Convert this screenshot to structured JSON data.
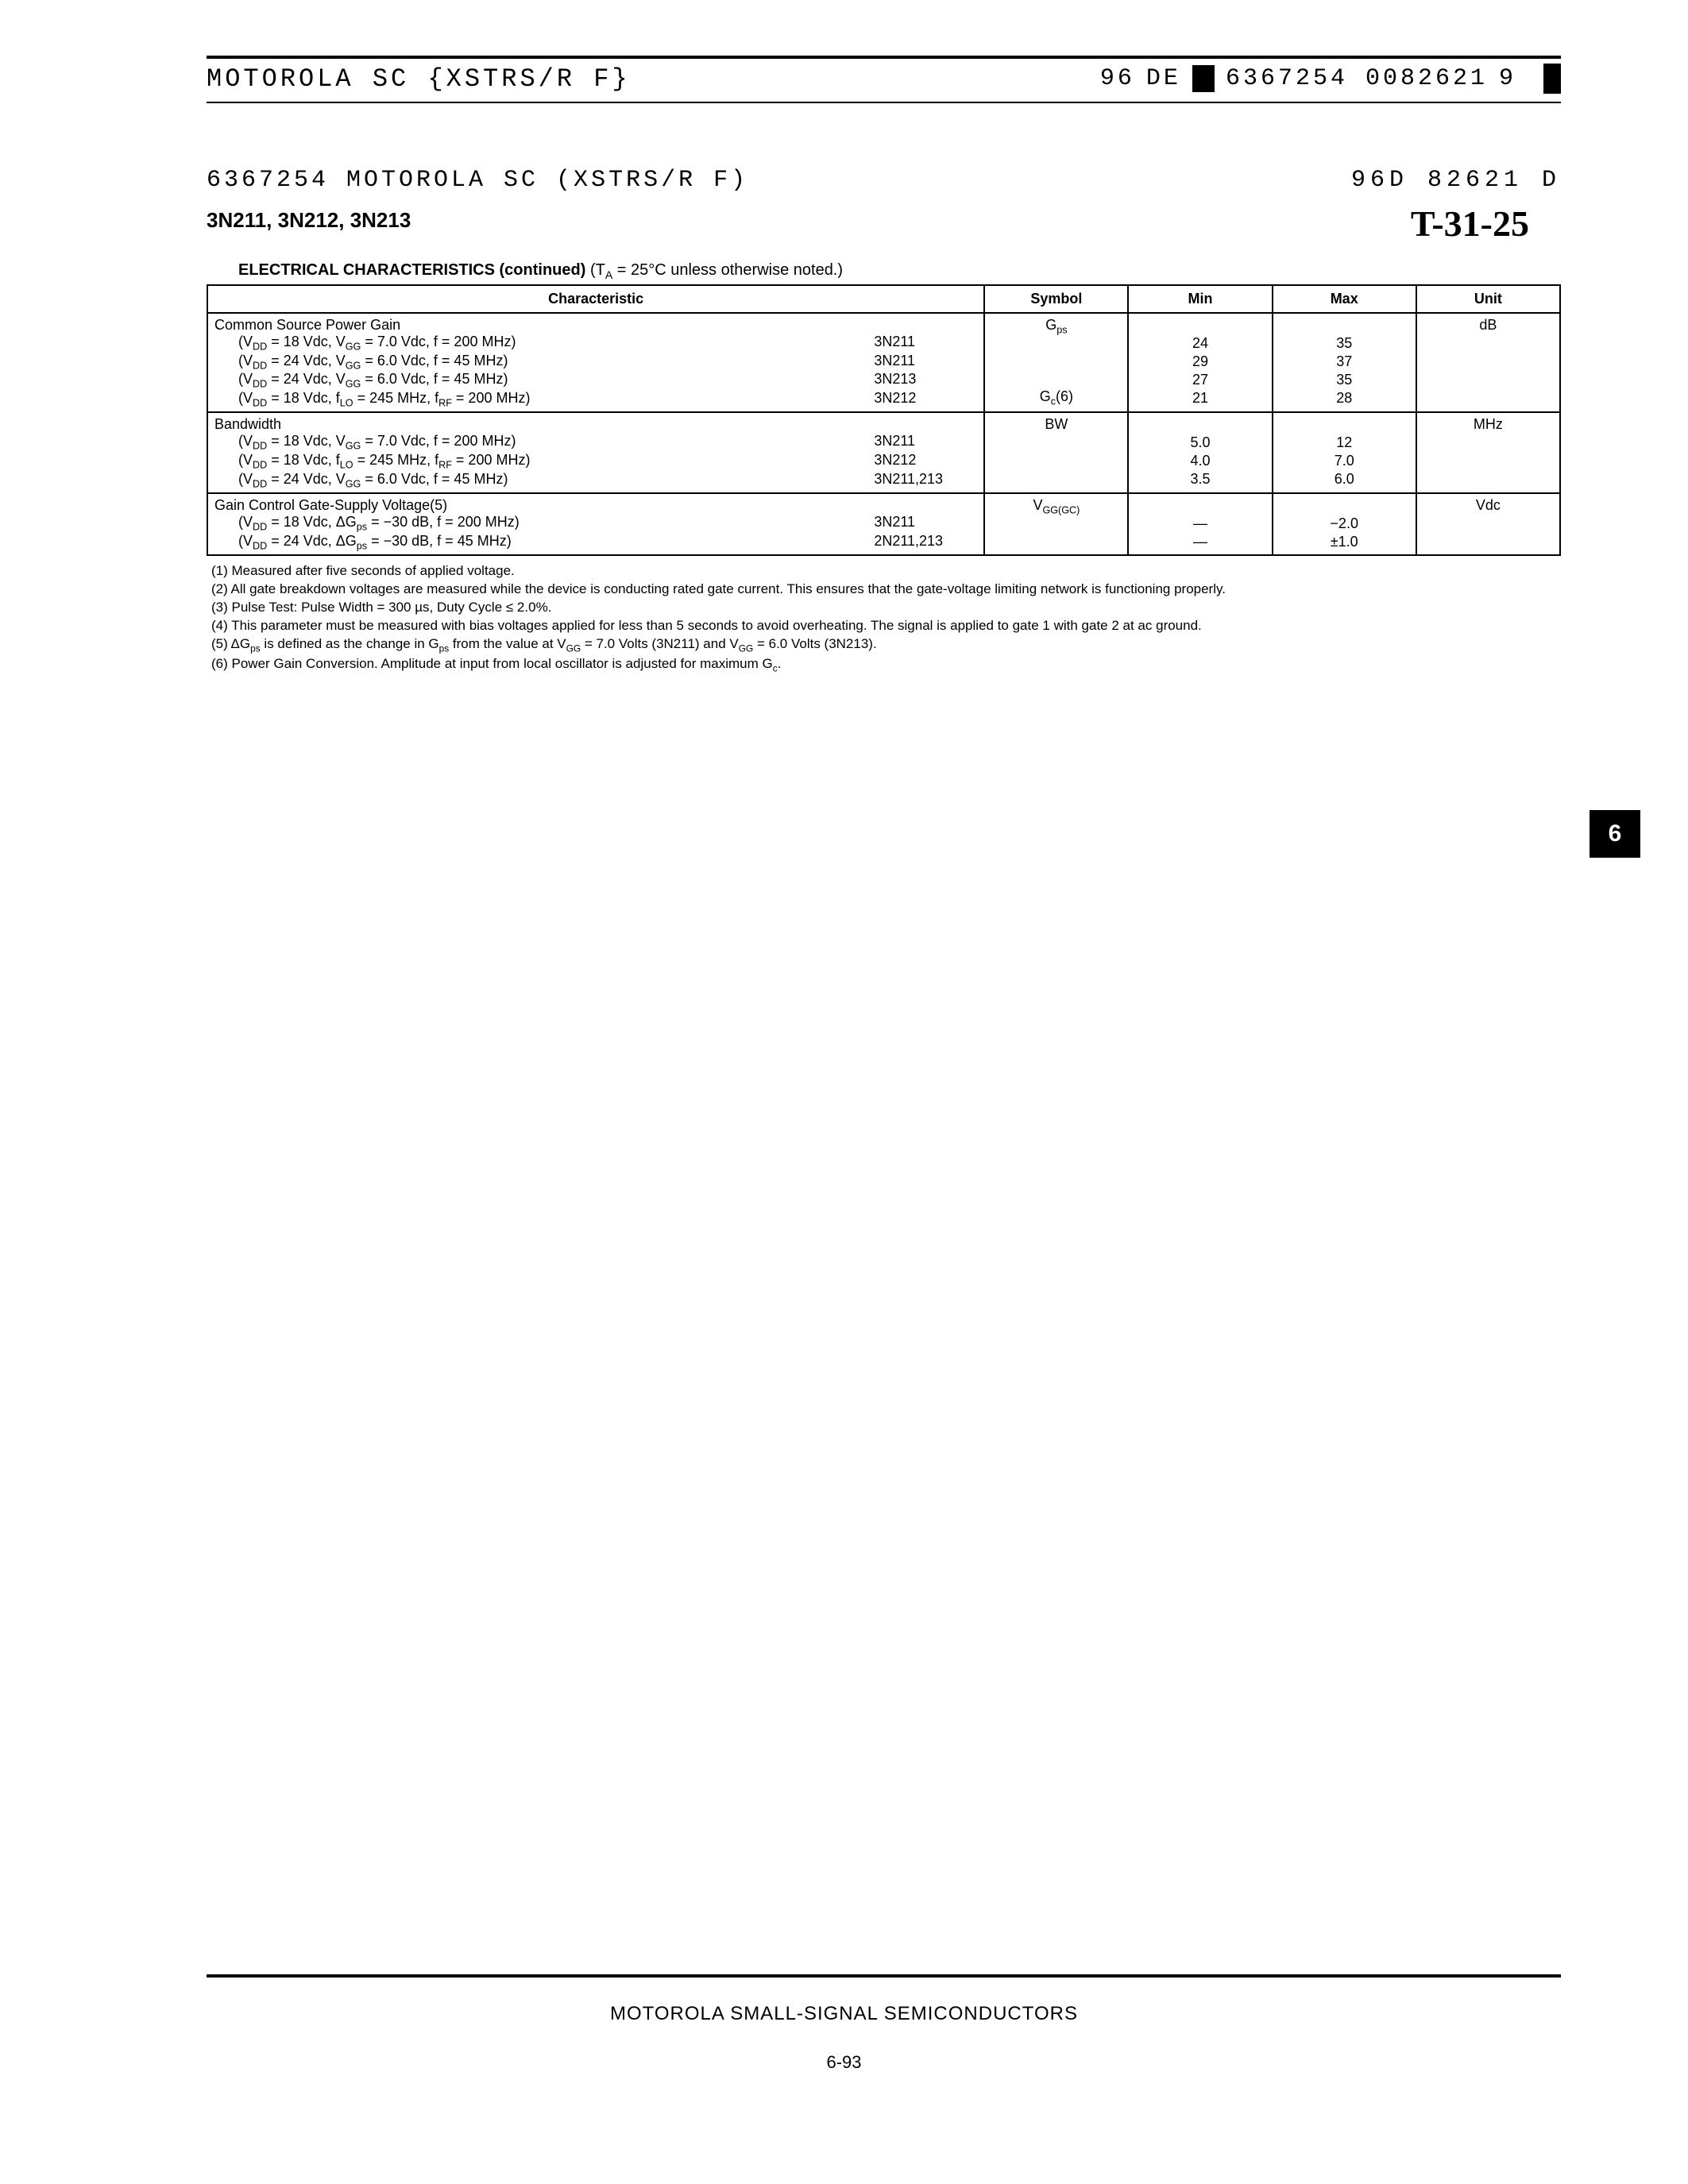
{
  "topbar": {
    "left": "MOTOROLA SC {XSTRS/R F}",
    "right_a": "96",
    "right_b": "DE",
    "right_c": "6367254 0082621",
    "right_d": "9"
  },
  "header2": {
    "left": "6367254 MOTOROLA SC (XSTRS/R F)",
    "right": "96D 82621   D"
  },
  "parts_line": "3N211, 3N212, 3N213",
  "handwritten": "T-31-25",
  "ec_title": "ELECTRICAL CHARACTERISTICS (continued)",
  "ec_title_cond": "(T",
  "ec_title_sub": "A",
  "ec_title_cond2": " = 25°C unless otherwise noted.)",
  "columns": {
    "char": "Characteristic",
    "sym": "Symbol",
    "min": "Min",
    "max": "Max",
    "unit": "Unit"
  },
  "sections": [
    {
      "title": "Common Source Power Gain",
      "symbol_top": "G",
      "symbol_top_sub": "ps",
      "symbol_bot": "G",
      "symbol_bot_sub": "c",
      "symbol_bot_extra": "(6)",
      "unit": "dB",
      "rows": [
        {
          "cond": "(V_DD = 18 Vdc, V_GG = 7.0 Vdc, f = 200 MHz)",
          "dev": "3N211",
          "min": "24",
          "max": "35"
        },
        {
          "cond": "(V_DD = 24 Vdc, V_GG = 6.0 Vdc, f = 45 MHz)",
          "dev": "3N211",
          "min": "29",
          "max": "37"
        },
        {
          "cond": "(V_DD = 24 Vdc, V_GG = 6.0 Vdc, f = 45 MHz)",
          "dev": "3N213",
          "min": "27",
          "max": "35"
        },
        {
          "cond": "(V_DD = 18 Vdc, f_LO = 245 MHz, f_RF = 200 MHz)",
          "dev": "3N212",
          "min": "21",
          "max": "28"
        }
      ]
    },
    {
      "title": "Bandwidth",
      "symbol_top": "BW",
      "unit": "MHz",
      "rows": [
        {
          "cond": "(V_DD = 18 Vdc, V_GG = 7.0 Vdc, f = 200 MHz)",
          "dev": "3N211",
          "min": "5.0",
          "max": "12"
        },
        {
          "cond": "(V_DD = 18 Vdc, f_LO = 245 MHz, f_RF = 200 MHz)",
          "dev": "3N212",
          "min": "4.0",
          "max": "7.0"
        },
        {
          "cond": "(V_DD = 24 Vdc, V_GG = 6.0 Vdc, f = 45 MHz)",
          "dev": "3N211,213",
          "min": "3.5",
          "max": "6.0"
        }
      ]
    },
    {
      "title": "Gain Control Gate-Supply Voltage(5)",
      "symbol_top": "V",
      "symbol_top_sub": "GG(GC)",
      "unit": "Vdc",
      "rows": [
        {
          "cond": "(V_DD = 18 Vdc, ΔG_ps = −30 dB, f = 200 MHz)",
          "dev": "3N211",
          "min": "—",
          "max": "−2.0"
        },
        {
          "cond": "(V_DD = 24 Vdc, ΔG_ps = −30 dB, f = 45 MHz)",
          "dev": "2N211,213",
          "min": "—",
          "max": "±1.0"
        }
      ]
    }
  ],
  "notes": [
    "(1) Measured after five seconds of applied voltage.",
    "(2) All gate breakdown voltages are measured while the device is conducting rated gate current. This ensures that the gate-voltage limiting network is functioning properly.",
    "(3) Pulse Test: Pulse Width = 300 µs, Duty Cycle ≤ 2.0%.",
    "(4) This parameter must be measured with bias voltages applied for less than 5 seconds to avoid overheating. The signal is applied to gate 1 with gate 2 at ac ground.",
    "(5) ΔG_ps is defined as the change in G_ps from the value at V_GG = 7.0 Volts (3N211) and V_GG = 6.0 Volts (3N213).",
    "(6) Power Gain Conversion. Amplitude at input from local oscillator is adjusted for maximum G_c."
  ],
  "side_tab": "6",
  "footer_text": "MOTOROLA SMALL-SIGNAL SEMICONDUCTORS",
  "page_number": "6-93"
}
